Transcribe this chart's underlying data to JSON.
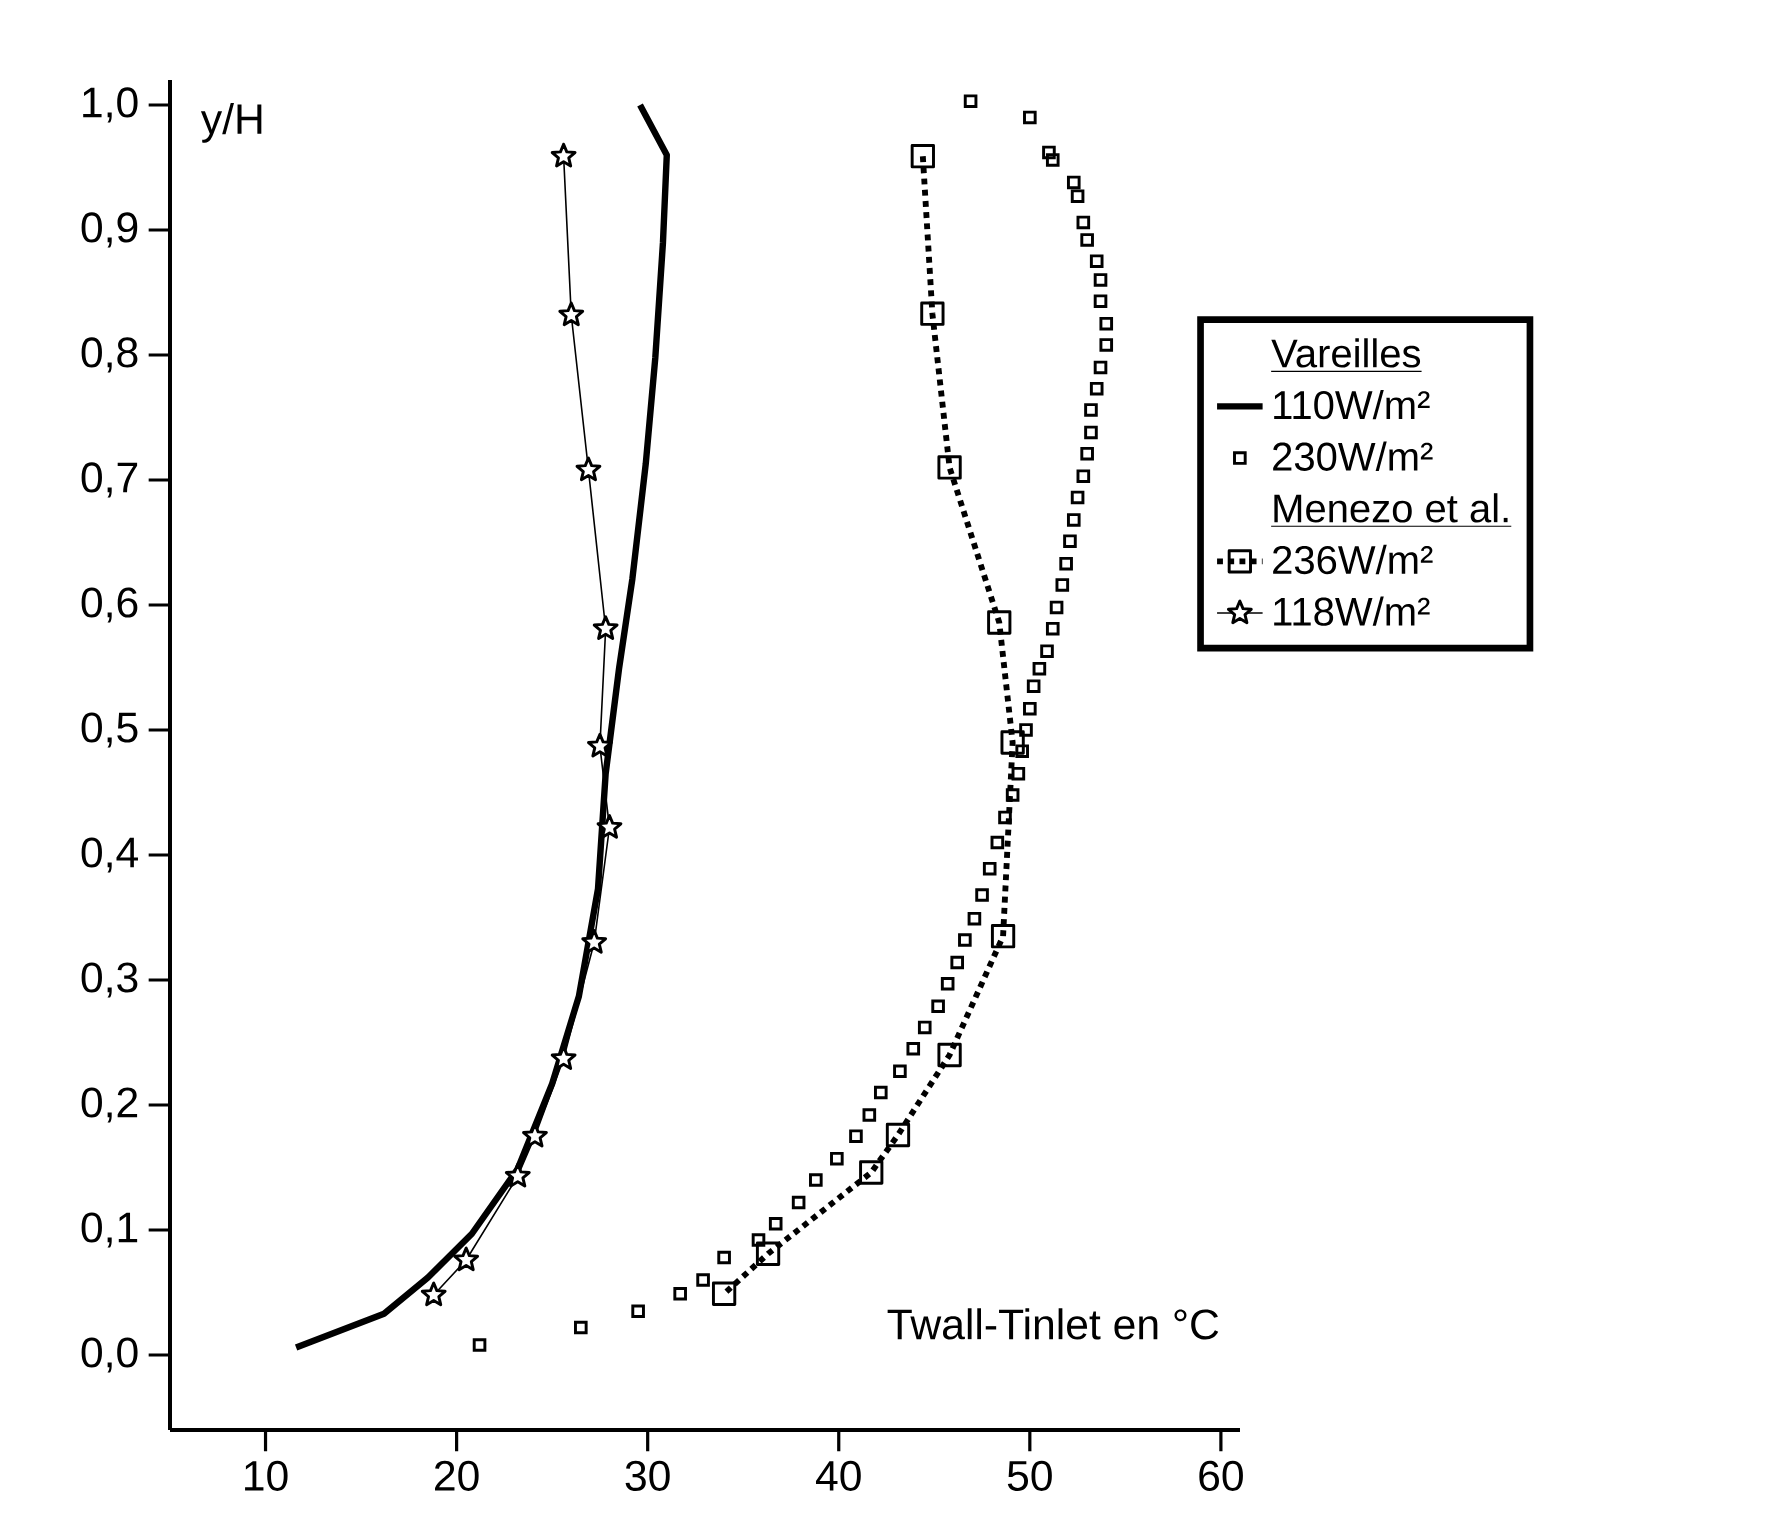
{
  "chart_data": {
    "type": "line",
    "xlabel": "Twall-Tinlet en °C",
    "ylabel": "y/H",
    "xlim": [
      5,
      61
    ],
    "ylim": [
      -0.06,
      1.02
    ],
    "xticks": [
      10,
      20,
      30,
      40,
      50,
      60
    ],
    "yticks": [
      {
        "value": 0,
        "label": "0,0"
      },
      {
        "value": 0.1,
        "label": "0,1"
      },
      {
        "value": 0.2,
        "label": "0,2"
      },
      {
        "value": 0.3,
        "label": "0,3"
      },
      {
        "value": 0.4,
        "label": "0,4"
      },
      {
        "value": 0.5,
        "label": "0,5"
      },
      {
        "value": 0.6,
        "label": "0,6"
      },
      {
        "value": 0.7,
        "label": "0,7"
      },
      {
        "value": 0.8,
        "label": "0,8"
      },
      {
        "value": 0.9,
        "label": "0,9"
      },
      {
        "value": 1.0,
        "label": "1,0"
      }
    ],
    "legend": "right",
    "grid": false,
    "annotations": [
      "Vareilles",
      "Menezo et al."
    ],
    "series": [
      {
        "name": "110W/m²",
        "type": "line",
        "color": "#000000",
        "marker": "none",
        "line_style": "solid",
        "x": [
          11.6,
          16.2,
          18.5,
          20.8,
          23.2,
          25.0,
          26.4,
          27.4,
          27.8,
          28.5,
          29.2,
          29.9,
          30.4,
          30.8,
          31.0,
          29.6
        ],
        "values": [
          0.006,
          0.033,
          0.062,
          0.097,
          0.149,
          0.217,
          0.287,
          0.373,
          0.465,
          0.549,
          0.621,
          0.713,
          0.798,
          0.89,
          0.96,
          1.0
        ]
      },
      {
        "name": "230W/m²",
        "type": "scatter",
        "color": "#000000",
        "marker": "square",
        "x": [
          21.2,
          26.5,
          29.5,
          31.7,
          32.9,
          34.0,
          35.8,
          36.7,
          37.9,
          38.8,
          39.9,
          40.9,
          41.6,
          42.2,
          43.2,
          43.9,
          44.5,
          45.2,
          45.7,
          46.2,
          46.6,
          47.1,
          47.5,
          47.9,
          48.3,
          48.7,
          49.1,
          49.4,
          49.6,
          49.8,
          50.0,
          50.2,
          50.5,
          50.9,
          51.2,
          51.4,
          51.7,
          51.9,
          52.1,
          52.3,
          52.5,
          52.8,
          53.0,
          53.2,
          53.2,
          53.5,
          53.7,
          54.0,
          54.0,
          53.7,
          53.7,
          53.5,
          53.0,
          52.8,
          52.5,
          52.3,
          51.2,
          51.0,
          50.0,
          46.9
        ],
        "values": [
          0.008,
          0.022,
          0.035,
          0.049,
          0.06,
          0.078,
          0.092,
          0.105,
          0.122,
          0.14,
          0.157,
          0.175,
          0.192,
          0.21,
          0.227,
          0.245,
          0.262,
          0.279,
          0.297,
          0.314,
          0.332,
          0.349,
          0.368,
          0.389,
          0.41,
          0.43,
          0.448,
          0.465,
          0.483,
          0.5,
          0.517,
          0.535,
          0.549,
          0.563,
          0.581,
          0.598,
          0.616,
          0.633,
          0.651,
          0.668,
          0.686,
          0.703,
          0.721,
          0.738,
          0.756,
          0.773,
          0.79,
          0.808,
          0.825,
          0.843,
          0.86,
          0.875,
          0.892,
          0.906,
          0.927,
          0.938,
          0.956,
          0.962,
          0.99,
          1.003
        ]
      },
      {
        "name": "236W/m²",
        "type": "line",
        "color": "#000000",
        "marker": "square",
        "line_style": "dotted",
        "x": [
          44.4,
          44.9,
          45.8,
          48.4,
          49.1,
          48.6,
          45.8,
          43.1,
          41.7,
          36.3,
          34.0
        ],
        "values": [
          0.959,
          0.833,
          0.71,
          0.586,
          0.49,
          0.335,
          0.24,
          0.176,
          0.146,
          0.081,
          0.049
        ]
      },
      {
        "name": "118W/m²",
        "type": "line",
        "color": "#000000",
        "marker": "star",
        "line_style": "solid",
        "x": [
          25.6,
          26.0,
          26.9,
          27.8,
          27.5,
          28.0,
          27.2,
          25.6,
          24.1,
          23.2,
          20.5,
          18.8
        ],
        "values": [
          0.959,
          0.832,
          0.708,
          0.581,
          0.487,
          0.422,
          0.33,
          0.237,
          0.175,
          0.143,
          0.076,
          0.048
        ]
      }
    ]
  }
}
